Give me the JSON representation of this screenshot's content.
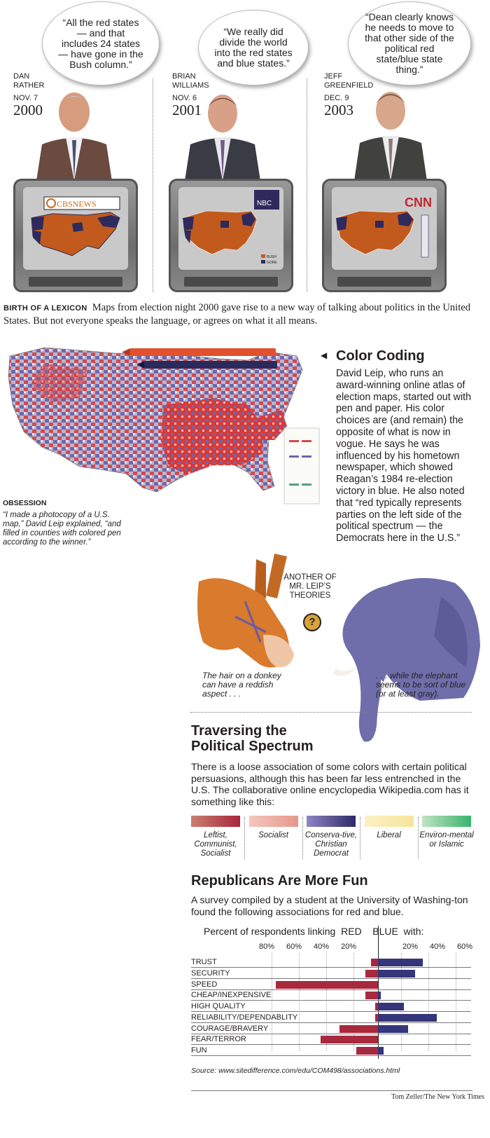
{
  "top": {
    "panels": [
      {
        "quote": "“All the red states — and that includes 24 states — have gone in the Bush column.”",
        "name_line1": "DAN",
        "name_line2": "RATHER",
        "date": "NOV. 7",
        "year": "2000",
        "network": "CBSNEWS"
      },
      {
        "quote": "“We really did divide the world into the red states and blue states.”",
        "name_line1": "BRIAN",
        "name_line2": "WILLIAMS",
        "date": "NOV. 6",
        "year": "2001",
        "network": "NBC",
        "legend": [
          "BUSH",
          "GORE"
        ]
      },
      {
        "quote": "“Dean clearly knows he needs to move to that other side of the political red state/blue state thing.”",
        "name_line1": "JEFF",
        "name_line2": "GREENFIELD",
        "date": "DEC. 9",
        "year": "2003",
        "network": "CNN"
      }
    ],
    "headline": "BIRTH OF A LEXICON",
    "intro": "Maps from election night 2000 gave rise to a new way of talking about politics in the United States. But not everyone speaks the language, or agrees on what it all means."
  },
  "color_coding": {
    "title": "Color Coding",
    "body": "David Leip, who runs an award-winning online atlas of election maps, started out with pen and paper. His color choices are (and remain) the opposite of what is now in vogue. He says he was influenced by his hometown newspaper, which showed Reagan’s 1984 re-election victory in blue. He also noted that “red typically represents parties on the left side of the political spectrum — the Democrats here in the U.S.”",
    "obsession_label": "OBSESSION",
    "obsession_caption": "“I made a photocopy of a U.S. map,” David Leip explained, “and filled in counties with colored pen according to the winner.”"
  },
  "theories": {
    "label": "ANOTHER OF MR. LEIP’S THEORIES",
    "question": "?",
    "donkey_caption": "The hair on a donkey can have a reddish aspect . . .",
    "elephant_caption": ". . . while the elephant seems to be sort of blue (or at least gray)."
  },
  "spectrum": {
    "title_line1": "Traversing the",
    "title_line2": "Political Spectrum",
    "body": "There is a loose association of some colors with certain political persuasions, although this has been far less entrenched in the U.S. The collaborative online encyclopedia Wikipedia.com has it something like this:",
    "swatches": [
      {
        "label": "Leftist, Communist, Socialist",
        "from": "#c9806f",
        "to": "#a8263c"
      },
      {
        "label": "Socialist",
        "from": "#f4c7bd",
        "to": "#e6978a"
      },
      {
        "label": "Conserva-tive, Christian Democrat",
        "from": "#8f86c4",
        "to": "#2d2a66"
      },
      {
        "label": "Liberal",
        "from": "#fbf1c5",
        "to": "#f6e59a"
      },
      {
        "label": "Environ-mental or Islamic",
        "from": "#bfe4c3",
        "to": "#3ab36b"
      }
    ]
  },
  "fun": {
    "title": "Republicans Are More Fun",
    "body": "A survey compiled by a student at the University of Washing-ton found the following associations for red and blue.",
    "chart_title_prefix": "Percent of respondents linking",
    "chart_title_red": "RED",
    "chart_title_blue": "BLUE",
    "chart_title_suffix": "with:",
    "source": "Source: www.sitedifference.com/edu/COM498/associations.html",
    "credit": "Tom Zeller/The New York Times"
  },
  "chart_data": {
    "type": "bar",
    "orientation": "horizontal-diverging",
    "title": "Percent of respondents linking RED | BLUE with:",
    "categories": [
      "TRUST",
      "SECURITY",
      "SPEED",
      "CHEAP/INEXPENSIVE",
      "HIGH QUALITY",
      "RELIABILITY/DEPENDABLITY",
      "COURAGE/BRAVERY",
      "FEAR/TERROR",
      "FUN"
    ],
    "series": [
      {
        "name": "RED",
        "values": [
          5,
          9,
          75,
          9,
          2,
          2,
          28,
          42,
          16
        ]
      },
      {
        "name": "BLUE",
        "values": [
          33,
          27,
          0,
          2,
          19,
          43,
          22,
          0,
          4
        ]
      }
    ],
    "red_ticks": [
      "80%",
      "60%",
      "40%",
      "20%"
    ],
    "blue_ticks": [
      "20%",
      "40%",
      "60%"
    ],
    "xlim": [
      -80,
      65
    ],
    "colors": {
      "red": "#a8283e",
      "blue": "#35357a"
    }
  }
}
